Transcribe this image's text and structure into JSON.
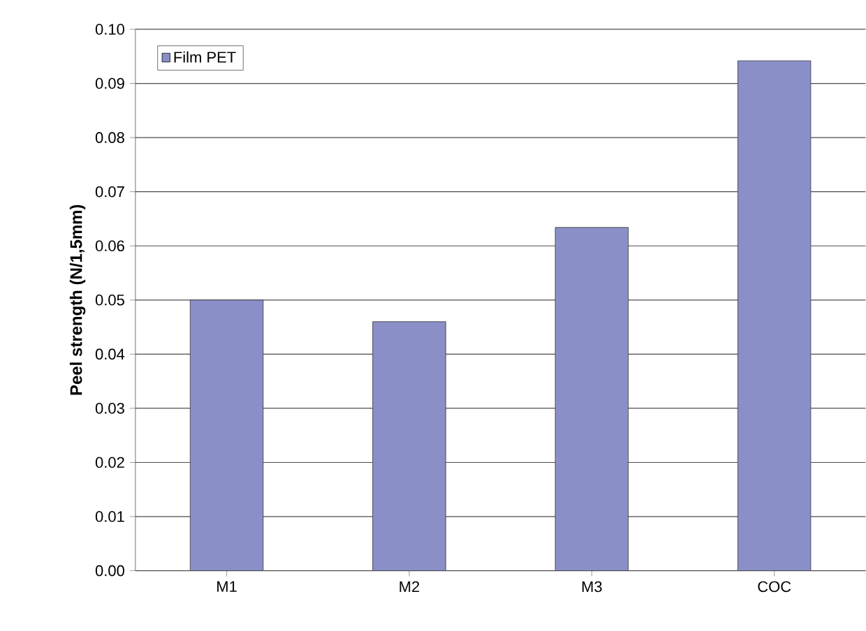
{
  "chart_data": {
    "type": "bar",
    "ylabel": "Peel strength  (N/1,5mm)",
    "categories": [
      "M1",
      "M2",
      "M3",
      "COC"
    ],
    "series": [
      {
        "name": "Film PET",
        "color": "#8a8fc8",
        "values": [
          0.05,
          0.046,
          0.0634,
          0.0942
        ]
      }
    ],
    "ylim": [
      0,
      0.1
    ],
    "yticks": [
      {
        "value": 0,
        "label": "0.00"
      },
      {
        "value": 0.01,
        "label": "0.01"
      },
      {
        "value": 0.02,
        "label": "0.02"
      },
      {
        "value": 0.03,
        "label": "0.03"
      },
      {
        "value": 0.04,
        "label": "0.04"
      },
      {
        "value": 0.05,
        "label": "0.05"
      },
      {
        "value": 0.06,
        "label": "0.06"
      },
      {
        "value": 0.07,
        "label": "0.07"
      },
      {
        "value": 0.08,
        "label": "0.08"
      },
      {
        "value": 0.09,
        "label": "0.09"
      },
      {
        "value": 0.1,
        "label": "0.10"
      }
    ],
    "grid": "y",
    "legend": "top left"
  }
}
